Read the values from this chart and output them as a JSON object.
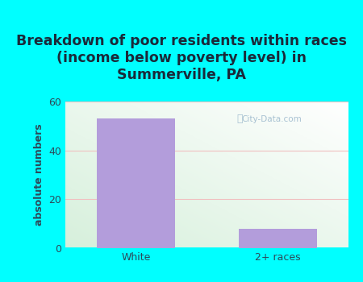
{
  "categories": [
    "White",
    "2+ races"
  ],
  "values": [
    53,
    8
  ],
  "bar_color": "#b39ddb",
  "title": "Breakdown of poor residents within races\n(income below poverty level) in\nSummerville, PA",
  "ylabel": "absolute numbers",
  "ylim": [
    0,
    60
  ],
  "yticks": [
    0,
    20,
    40,
    60
  ],
  "title_fontsize": 12.5,
  "label_fontsize": 9,
  "tick_fontsize": 9,
  "bg_outer": "#00ffff",
  "bg_plot_topleft": "#e8f5e9",
  "bg_plot_bottomleft": "#c8e6c9",
  "bg_plot_topright": "#f0f8ff",
  "bg_plot_bottomright": "#ffffff",
  "grid_color": "#f0c0c0",
  "title_color": "#1a2a3a",
  "axis_label_color": "#2d4a5a",
  "watermark": "City-Data.com"
}
